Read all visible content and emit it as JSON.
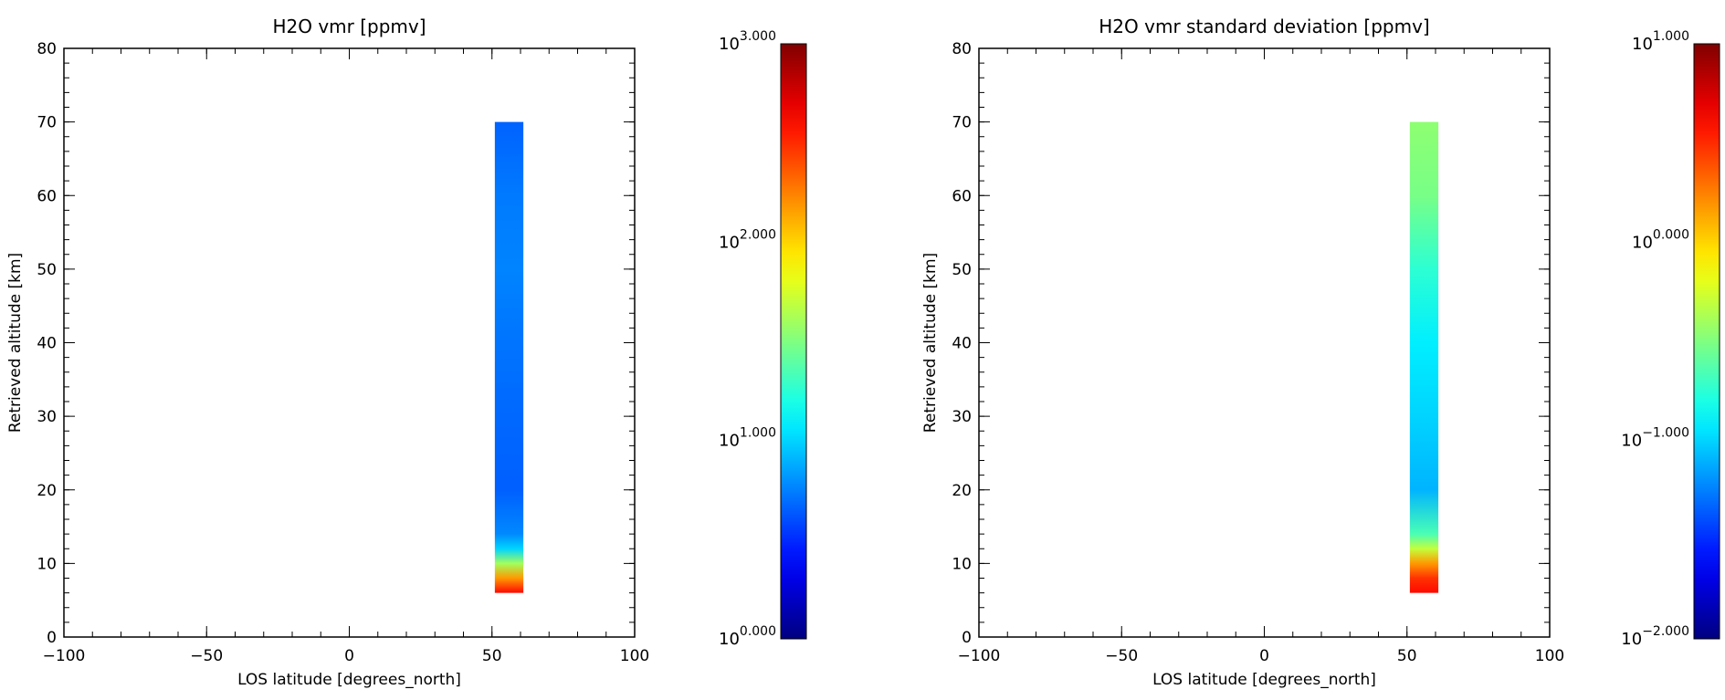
{
  "chart_data": [
    {
      "type": "heatmap",
      "title": "H2O vmr [ppmv]",
      "xlabel": "LOS latitude [degrees_north]",
      "ylabel": "Retrieved altitude [km]",
      "xlim": [
        -100,
        100
      ],
      "ylim": [
        0,
        80
      ],
      "xticks": [
        "−100",
        "−50",
        "0",
        "50",
        "100"
      ],
      "yticks": [
        "0",
        "10",
        "20",
        "30",
        "40",
        "50",
        "60",
        "70",
        "80"
      ],
      "colormap": "jet",
      "color_scale": "log",
      "colorbar": {
        "min_exponent": 0,
        "max_exponent": 3,
        "labels": [
          {
            "base": "10",
            "exp": "0.000"
          },
          {
            "base": "10",
            "exp": "1.000"
          },
          {
            "base": "10",
            "exp": "2.000"
          },
          {
            "base": "10",
            "exp": "3.000"
          }
        ]
      },
      "data_region": {
        "lat_range": [
          51,
          61
        ],
        "alt_range": [
          6,
          70
        ]
      },
      "profile": [
        {
          "alt": 6,
          "value": 400
        },
        {
          "alt": 8,
          "value": 150
        },
        {
          "alt": 10,
          "value": 40
        },
        {
          "alt": 12,
          "value": 10
        },
        {
          "alt": 14,
          "value": 6
        },
        {
          "alt": 20,
          "value": 4.5
        },
        {
          "alt": 30,
          "value": 4.8
        },
        {
          "alt": 40,
          "value": 5.2
        },
        {
          "alt": 50,
          "value": 5.8
        },
        {
          "alt": 60,
          "value": 5.4
        },
        {
          "alt": 70,
          "value": 4.6
        }
      ]
    },
    {
      "type": "heatmap",
      "title": "H2O vmr standard deviation [ppmv]",
      "xlabel": "LOS latitude [degrees_north]",
      "ylabel": "Retrieved altitude [km]",
      "xlim": [
        -100,
        100
      ],
      "ylim": [
        0,
        80
      ],
      "xticks": [
        "−100",
        "−50",
        "0",
        "50",
        "100"
      ],
      "yticks": [
        "0",
        "10",
        "20",
        "30",
        "40",
        "50",
        "60",
        "70",
        "80"
      ],
      "colormap": "jet",
      "color_scale": "log",
      "colorbar": {
        "min_exponent": -2,
        "max_exponent": 1,
        "labels": [
          {
            "base": "10",
            "exp": "−2.000"
          },
          {
            "base": "10",
            "exp": "−1.000"
          },
          {
            "base": "10",
            "exp": "0.000"
          },
          {
            "base": "10",
            "exp": "1.000"
          }
        ]
      },
      "data_region": {
        "lat_range": [
          51,
          61
        ],
        "alt_range": [
          6,
          70
        ]
      },
      "profile": [
        {
          "alt": 6,
          "value": 4
        },
        {
          "alt": 8,
          "value": 3
        },
        {
          "alt": 10,
          "value": 1.5
        },
        {
          "alt": 12,
          "value": 0.5
        },
        {
          "alt": 14,
          "value": 0.22
        },
        {
          "alt": 20,
          "value": 0.08
        },
        {
          "alt": 30,
          "value": 0.1
        },
        {
          "alt": 40,
          "value": 0.12
        },
        {
          "alt": 50,
          "value": 0.18
        },
        {
          "alt": 60,
          "value": 0.3
        },
        {
          "alt": 70,
          "value": 0.35
        }
      ]
    }
  ]
}
